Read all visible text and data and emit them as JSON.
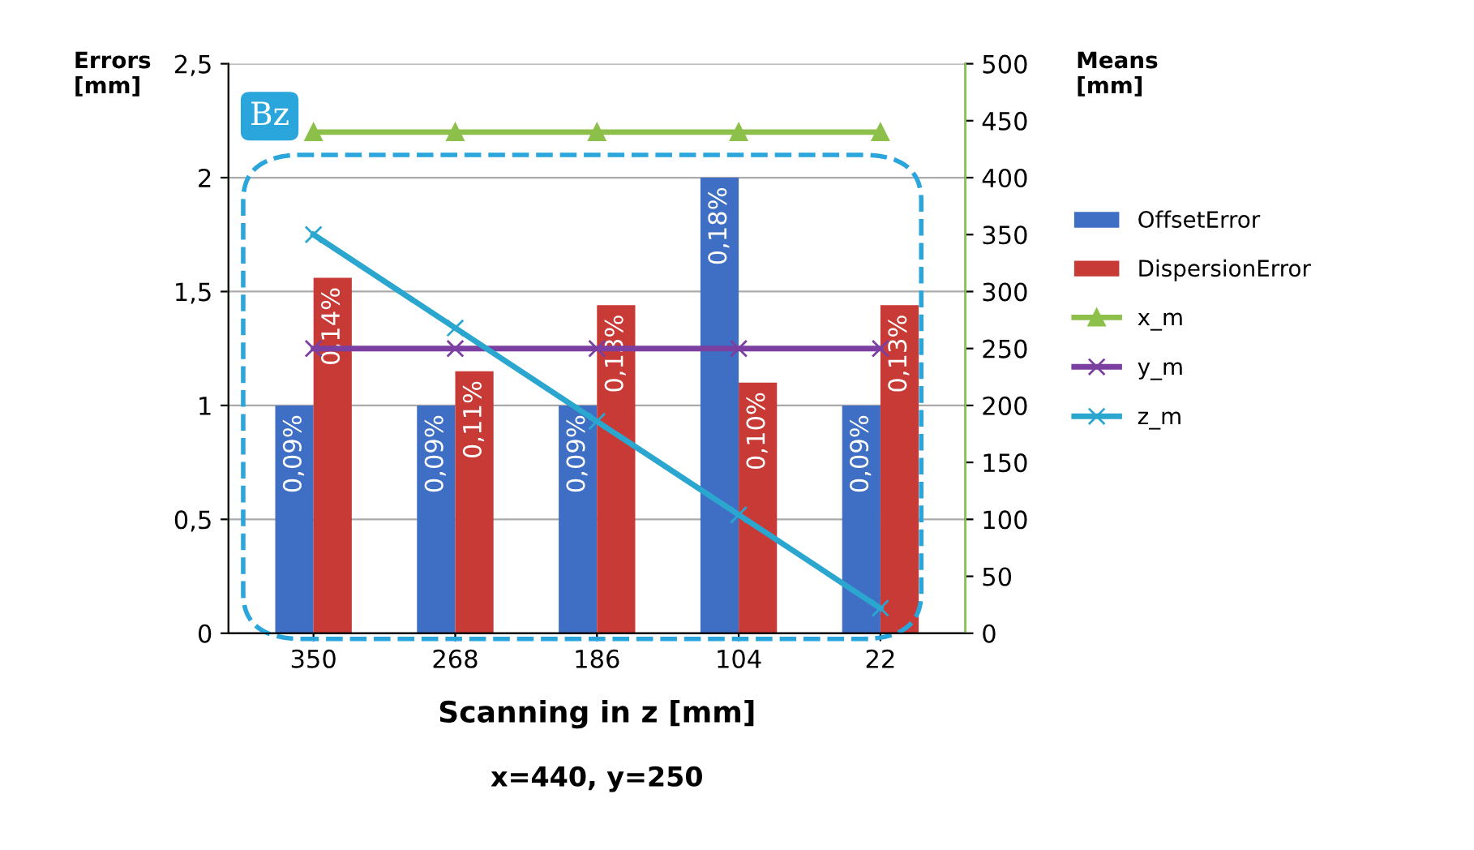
{
  "chart_data": {
    "type": "bar",
    "xlabel": "Scanning in z [mm]",
    "ylabel": "Errors\n[mm]",
    "y2label": "Means\n[mm]",
    "categories": [
      "350",
      "268",
      "186",
      "104",
      "22"
    ],
    "series": [
      {
        "name": "OffsetError",
        "color": "#3f6fc4",
        "values": [
          1,
          1,
          1,
          2,
          1
        ]
      },
      {
        "name": "DispersionError",
        "color": "#c83a36",
        "values": [
          1.56,
          1.15,
          1.44,
          1.1,
          1.44
        ]
      },
      {
        "name": "x_m",
        "type": "line",
        "axis": "y2",
        "marker": "triangle",
        "color": "#8cc04a",
        "values": [
          440,
          440,
          440,
          440,
          440
        ]
      },
      {
        "name": "y_m",
        "type": "line",
        "axis": "y2",
        "marker": "cross",
        "color": "#7a3fa0",
        "values": [
          250,
          250,
          250,
          250,
          250
        ]
      },
      {
        "name": "z_m",
        "type": "line",
        "axis": "y2",
        "marker": "cross",
        "color": "#2aa6cf",
        "values": [
          350,
          268,
          186,
          104,
          22
        ]
      }
    ],
    "ylim": [
      0,
      2.5
    ],
    "yticks": [
      0,
      {
        "value": 0.5,
        "label": "0,5"
      },
      1,
      {
        "value": 1.5,
        "label": "1,5"
      },
      2,
      {
        "value": 2.5,
        "label": "2,5"
      }
    ],
    "y2lim": [
      0,
      500
    ],
    "y2ticks": [
      0,
      50,
      100,
      150,
      200,
      250,
      300,
      350,
      400,
      450,
      500
    ],
    "grid": "y",
    "legend": "right",
    "annotations": [
      "Bz",
      "x=440, y=250",
      {
        "text": "0,09%",
        "x": "350",
        "y": 1
      },
      {
        "text": "0,14%",
        "x": "350",
        "y": 1.56
      },
      {
        "text": "0,09%",
        "x": "268",
        "y": 1
      },
      {
        "text": "0,11%",
        "x": "268",
        "y": 1.15
      },
      {
        "text": "0,09%",
        "x": "186",
        "y": 1
      },
      {
        "text": "0,13%",
        "x": "186",
        "y": 1.44
      },
      {
        "text": "0,18%",
        "x": "104",
        "y": 2
      },
      {
        "text": "0,10%",
        "x": "104",
        "y": 1.1
      },
      {
        "text": "0,09%",
        "x": "22",
        "y": 1
      },
      {
        "text": "0,13%",
        "x": "22",
        "y": 1.44
      }
    ]
  }
}
